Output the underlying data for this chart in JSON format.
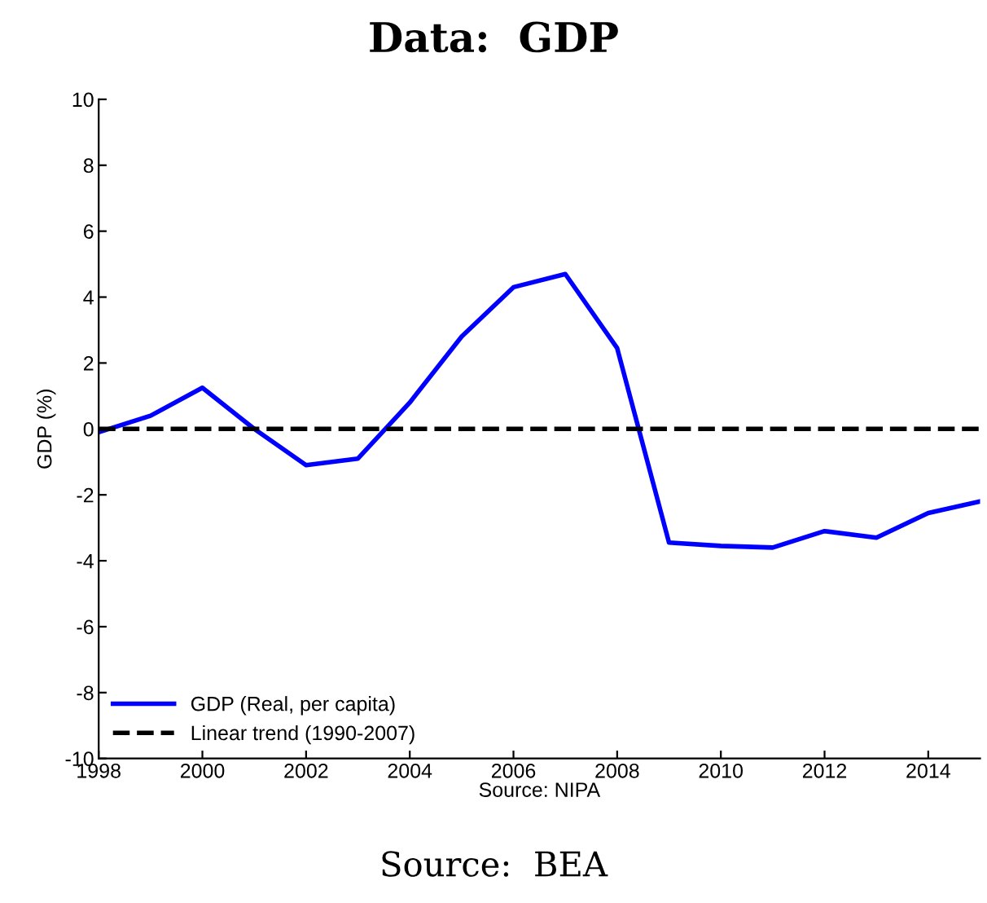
{
  "chart_data": {
    "type": "line",
    "title": "Data:  GDP",
    "ylabel": "GDP (%)",
    "xlabel": "Source: NIPA",
    "x": [
      1998,
      1999,
      2000,
      2001,
      2002,
      2003,
      2004,
      2005,
      2006,
      2007,
      2008,
      2009,
      2010,
      2011,
      2012,
      2013,
      2014,
      2015
    ],
    "series": [
      {
        "name": "GDP (Real, per capita)",
        "color": "#0000ff",
        "line_style": "solid",
        "values": [
          -0.1,
          0.4,
          1.25,
          0.0,
          -1.1,
          -0.9,
          0.8,
          2.8,
          4.3,
          4.7,
          2.45,
          -3.45,
          -3.55,
          -3.6,
          -3.1,
          -3.3,
          -2.55,
          -2.2
        ]
      },
      {
        "name": "Linear trend (1990-2007)",
        "color": "#000000",
        "line_style": "dashed",
        "values": [
          0,
          0,
          0,
          0,
          0,
          0,
          0,
          0,
          0,
          0,
          0,
          0,
          0,
          0,
          0,
          0,
          0,
          0
        ]
      }
    ],
    "xlim": [
      1998,
      2015
    ],
    "xticks": [
      1998,
      2000,
      2002,
      2004,
      2006,
      2008,
      2010,
      2012,
      2014
    ],
    "ylim": [
      -10,
      10
    ],
    "yticks": [
      -10,
      -8,
      -6,
      -4,
      -2,
      0,
      2,
      4,
      6,
      8,
      10
    ],
    "grid": false,
    "legend": "bottom left",
    "marker": "none",
    "annotations": [
      "Source:  BEA"
    ]
  }
}
